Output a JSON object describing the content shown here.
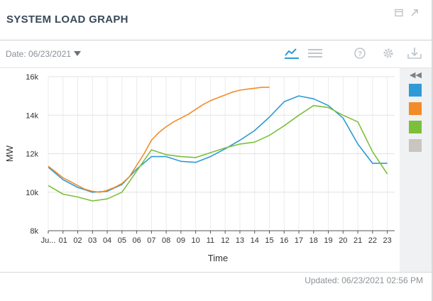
{
  "widget": {
    "title": "SYSTEM LOAD GRAPH",
    "date_label": "Date: 06/23/2021",
    "updated": "Updated: 06/23/2021 02:56 PM"
  },
  "header_icons": [
    "window-icon",
    "expand-icon"
  ],
  "toolbar_icons": [
    "line-chart-icon",
    "table-view-icon",
    "help-icon",
    "gear-icon",
    "download-icon"
  ],
  "colors": {
    "blue": "#2e9bd6",
    "orange": "#f28c28",
    "green": "#7cbf3b",
    "gray": "#c9c6c0"
  },
  "legend_swatches": [
    {
      "color": "#2e9bd6"
    },
    {
      "color": "#f28c28"
    },
    {
      "color": "#7cbf3b"
    },
    {
      "color": "#c9c6c0"
    }
  ],
  "chart_data": {
    "type": "line",
    "xlabel": "Time",
    "ylabel": "MW",
    "ylim": [
      8000,
      16000
    ],
    "xlim": [
      0,
      23.5
    ],
    "yticks": [
      8000,
      10000,
      12000,
      14000,
      16000
    ],
    "ytick_labels": [
      "8k",
      "10k",
      "12k",
      "14k",
      "16k"
    ],
    "xtick_labels": [
      "Ju...",
      "01",
      "02",
      "03",
      "04",
      "05",
      "06",
      "07",
      "08",
      "09",
      "10",
      "11",
      "12",
      "13",
      "14",
      "15",
      "16",
      "17",
      "18",
      "19",
      "20",
      "21",
      "22",
      "23"
    ],
    "grid": true,
    "series": [
      {
        "color": "#2e9bd6",
        "x": [
          0,
          1,
          2,
          3,
          4,
          5,
          6,
          7,
          8,
          9,
          10,
          11,
          12,
          13,
          14,
          15,
          16,
          17,
          18,
          19,
          20,
          21,
          22,
          23
        ],
        "values": [
          11300,
          10650,
          10250,
          10000,
          10050,
          10400,
          11200,
          11850,
          11850,
          11600,
          11550,
          11850,
          12250,
          12700,
          13200,
          13900,
          14700,
          15000,
          14850,
          14500,
          13850,
          12500,
          11500,
          11500
        ]
      },
      {
        "color": "#f28c28",
        "x": [
          0,
          0.5,
          1,
          1.5,
          2,
          2.5,
          3,
          3.5,
          4,
          4.5,
          5,
          5.5,
          6,
          6.5,
          7,
          7.5,
          8,
          8.5,
          9,
          9.5,
          10,
          10.5,
          11,
          11.5,
          12,
          12.5,
          13,
          13.5,
          14,
          14.5,
          15
        ],
        "values": [
          11350,
          11050,
          10750,
          10550,
          10350,
          10150,
          10050,
          10000,
          10100,
          10250,
          10450,
          10800,
          11400,
          12000,
          12700,
          13100,
          13400,
          13650,
          13850,
          14050,
          14300,
          14550,
          14750,
          14900,
          15050,
          15200,
          15300,
          15350,
          15400,
          15450,
          15450
        ]
      },
      {
        "color": "#7cbf3b",
        "x": [
          0,
          1,
          2,
          3,
          4,
          5,
          6,
          7,
          8,
          9,
          10,
          11,
          12,
          13,
          14,
          15,
          16,
          17,
          18,
          19,
          20,
          21,
          22,
          23
        ],
        "values": [
          10350,
          9900,
          9750,
          9550,
          9650,
          10000,
          11100,
          12200,
          11950,
          11850,
          11800,
          12050,
          12300,
          12500,
          12600,
          12950,
          13450,
          14000,
          14500,
          14400,
          14000,
          13650,
          12100,
          10950
        ]
      }
    ]
  }
}
